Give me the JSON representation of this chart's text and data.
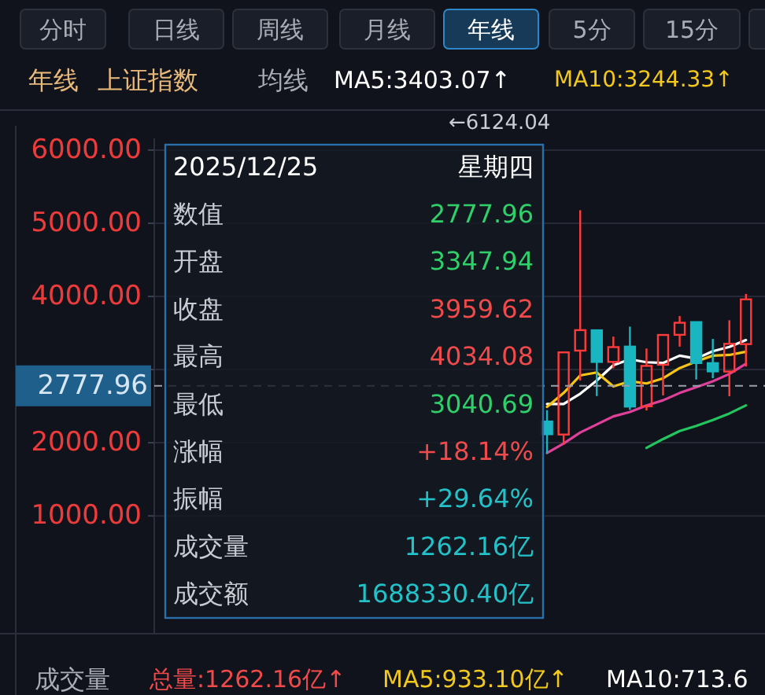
{
  "chart_data": {
    "type": "candlestick",
    "categories": [
      null,
      null,
      null,
      null,
      null,
      null,
      null,
      null,
      null,
      null,
      null,
      null,
      null,
      null,
      null,
      null,
      null,
      null,
      null,
      null,
      null,
      null,
      null,
      null,
      null,
      null,
      null,
      null,
      null,
      null,
      null,
      null,
      null,
      null,
      null,
      null
    ],
    "ohlc": [
      null,
      null,
      null,
      null,
      null,
      null,
      null,
      null,
      null,
      null,
      null,
      null,
      null,
      null,
      null,
      null,
      null,
      null,
      null,
      null,
      null,
      null,
      null,
      [
        2290,
        2445,
        1850,
        2116
      ],
      [
        2112,
        3239,
        1974,
        3235
      ],
      [
        3259,
        5178,
        2851,
        3539
      ],
      [
        3537,
        3539,
        2638,
        3104
      ],
      [
        3105,
        3450,
        3017,
        3307
      ],
      [
        3314,
        3587,
        2449,
        2494
      ],
      [
        2498,
        3288,
        2441,
        3050
      ],
      [
        3066,
        3475,
        2647,
        3473
      ],
      [
        3475,
        3732,
        3313,
        3640
      ],
      [
        3649,
        3652,
        2864,
        3089
      ],
      [
        3088,
        3419,
        2882,
        2975
      ],
      [
        2973,
        3674,
        2635,
        3352
      ],
      [
        3347.94,
        4034.08,
        3040.69,
        3959.62
      ]
    ],
    "colors": [
      null,
      null,
      null,
      null,
      null,
      null,
      null,
      null,
      null,
      null,
      null,
      null,
      null,
      null,
      null,
      null,
      null,
      null,
      null,
      null,
      null,
      null,
      null,
      "#19b6c2",
      "#ff3b3b",
      "#ff3b3b",
      "#19b6c2",
      "#ff3b3b",
      "#19b6c2",
      "#ff3b3b",
      "#ff3b3b",
      "#ff3b3b",
      "#19b6c2",
      "#19b6c2",
      "#ff3b3b",
      "#ff3b3b"
    ],
    "series": [
      {
        "type": "line",
        "color": "#ffffff",
        "values": [
          null,
          null,
          null,
          null,
          null,
          null,
          null,
          null,
          null,
          null,
          null,
          null,
          null,
          null,
          null,
          null,
          null,
          null,
          null,
          null,
          null,
          null,
          null,
          2530,
          2530,
          2670,
          2850,
          3060,
          3140,
          3100,
          3090,
          3190,
          3150,
          3250,
          3310,
          3403.07
        ]
      },
      {
        "type": "line",
        "color": "#f5c518",
        "values": [
          null,
          null,
          null,
          null,
          null,
          null,
          null,
          null,
          null,
          null,
          null,
          null,
          null,
          null,
          null,
          null,
          null,
          null,
          null,
          null,
          null,
          null,
          null,
          2490,
          2680,
          2920,
          2960,
          2770,
          2840,
          2810,
          2880,
          3020,
          3110,
          3190,
          3200,
          3244.33
        ]
      },
      {
        "type": "line",
        "color": "#e0409a",
        "values": [
          null,
          null,
          null,
          null,
          null,
          null,
          null,
          null,
          null,
          null,
          null,
          null,
          null,
          null,
          null,
          null,
          null,
          null,
          null,
          null,
          null,
          null,
          null,
          1860,
          1990,
          2140,
          2250,
          2360,
          2420,
          2510,
          2580,
          2680,
          2760,
          2840,
          2940,
          3080
        ]
      },
      {
        "type": "line",
        "color": "#22c55e",
        "values": [
          null,
          null,
          null,
          null,
          null,
          null,
          null,
          null,
          null,
          null,
          null,
          null,
          null,
          null,
          null,
          null,
          null,
          null,
          null,
          null,
          null,
          null,
          null,
          null,
          null,
          null,
          null,
          null,
          null,
          1930,
          2050,
          2160,
          2230,
          2310,
          2400,
          2510
        ]
      }
    ],
    "ylim": [
      -610,
      6160
    ],
    "yticks": [
      {
        "value": 1000,
        "label": "1000.00"
      },
      {
        "value": 2000,
        "label": "2000.00"
      },
      {
        "value": 3000,
        "label": null
      },
      {
        "value": 4000,
        "label": "4000.00"
      },
      {
        "value": 5000,
        "label": "5000.00"
      },
      {
        "value": 6000,
        "label": "6000.00"
      }
    ],
    "grid": "y",
    "tick_labels": "y",
    "ref_lines": [
      {
        "axis": "y",
        "value": 2777.96,
        "label": "2777.96",
        "line_style": "dashed"
      }
    ],
    "annotations": [
      "分时",
      "日线",
      "周线",
      "月线",
      "年线",
      "5分",
      "15分",
      "年线",
      "上证指数",
      "均线",
      "MA5:3403.07↑",
      "MA10:3244.33↑",
      "2025/12/25",
      "星期四",
      "数值",
      "2777.96",
      "开盘",
      "3347.94",
      "收盘",
      "3959.62",
      "最高",
      "4034.08",
      "最低",
      "3040.69",
      "涨幅",
      "+18.14%",
      "振幅",
      "+29.64%",
      "成交量",
      "1262.16亿",
      "成交额",
      "1688330.40亿",
      "←6124.04",
      "成交量",
      "总量:1262.16亿↑",
      "MA5:933.10亿↑",
      "MA10:713.6"
    ]
  }
}
